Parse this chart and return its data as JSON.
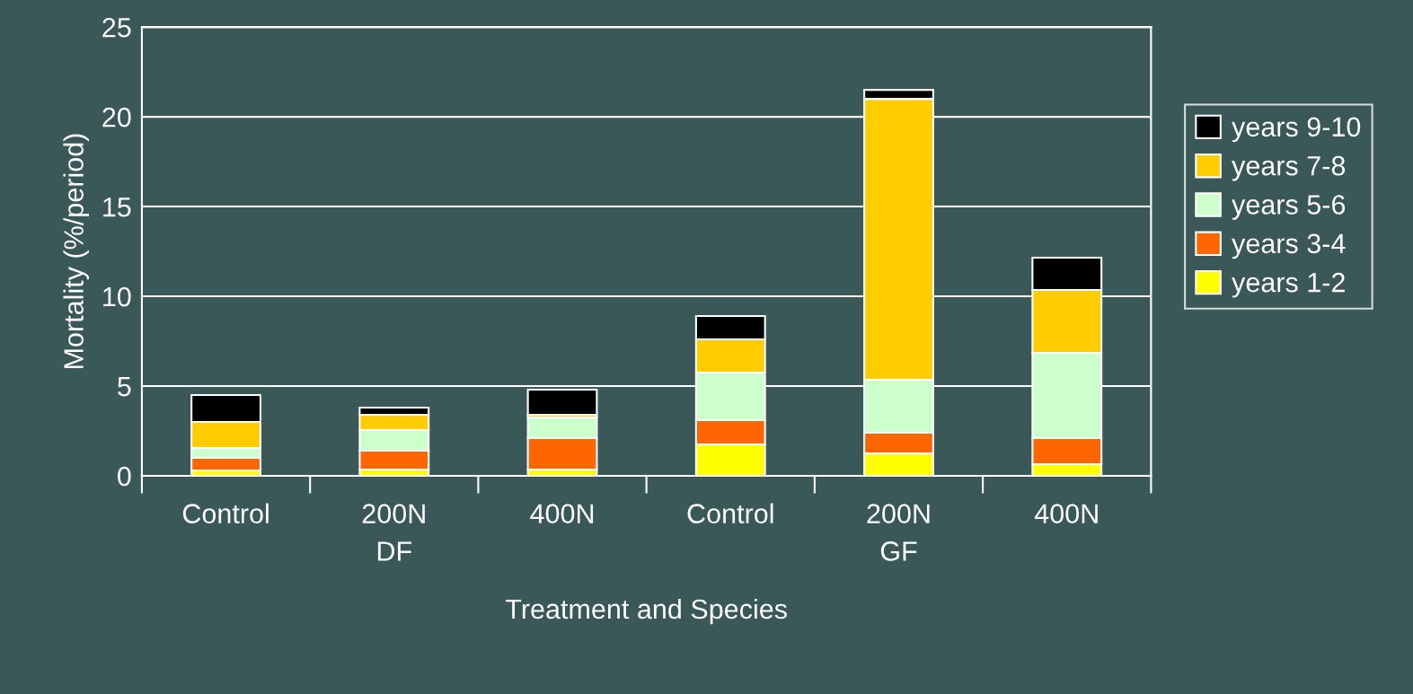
{
  "chart_data": {
    "type": "bar",
    "stacked": true,
    "xlabel": "Treatment and Species",
    "ylabel": "Mortality (%/period)",
    "categories": [
      "Control",
      "200N\nDF",
      "400N",
      "Control",
      "200N\nGF",
      "400N"
    ],
    "series": [
      {
        "name": "years 1-2",
        "color": "#ffff00",
        "values": [
          0.3,
          0.35,
          0.35,
          1.75,
          1.25,
          0.65
        ]
      },
      {
        "name": "years 3-4",
        "color": "#ff6600",
        "values": [
          0.7,
          1.05,
          1.75,
          1.35,
          1.15,
          1.45
        ]
      },
      {
        "name": "years 5-6",
        "color": "#ccffcc",
        "values": [
          0.55,
          1.15,
          1.15,
          2.65,
          2.95,
          4.75
        ]
      },
      {
        "name": "years 7-8",
        "color": "#ffcc00",
        "values": [
          1.45,
          0.85,
          0.15,
          1.85,
          15.65,
          3.5
        ]
      },
      {
        "name": "years 9-10",
        "color": "#000000",
        "values": [
          1.5,
          0.4,
          1.4,
          1.3,
          0.5,
          1.8
        ]
      }
    ],
    "ylim": [
      0,
      25
    ],
    "yticks": [
      0,
      5,
      10,
      15,
      20,
      25
    ],
    "grid": "y",
    "legend": "right"
  }
}
